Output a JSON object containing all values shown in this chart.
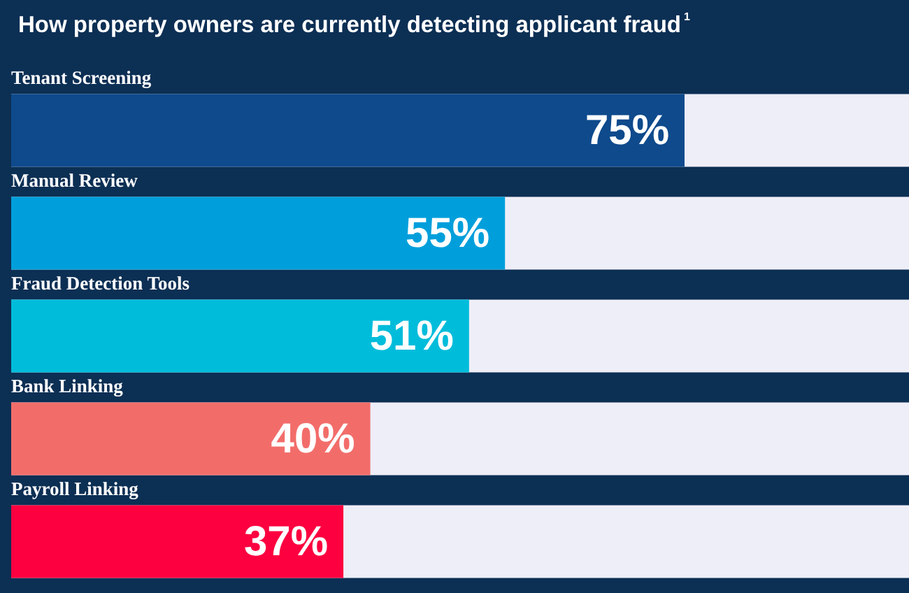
{
  "chart_data": {
    "type": "bar",
    "orientation": "horizontal",
    "title": "How property owners are currently detecting applicant fraud$^{1}$",
    "categories": [
      "Tenant Screening",
      "Manual Review",
      "Fraud Detection Tools",
      "Bank Linking",
      "Payroll Linking"
    ],
    "values": [
      75,
      55,
      51,
      40,
      37
    ],
    "colors": [
      "#0e4a8c",
      "#009fdb",
      "#00bcdb",
      "#f26d6a",
      "#fc0040"
    ],
    "value_labels": [
      "75%",
      "55%",
      "51%",
      "40%",
      "37%"
    ],
    "xlim": [
      0,
      100
    ]
  }
}
